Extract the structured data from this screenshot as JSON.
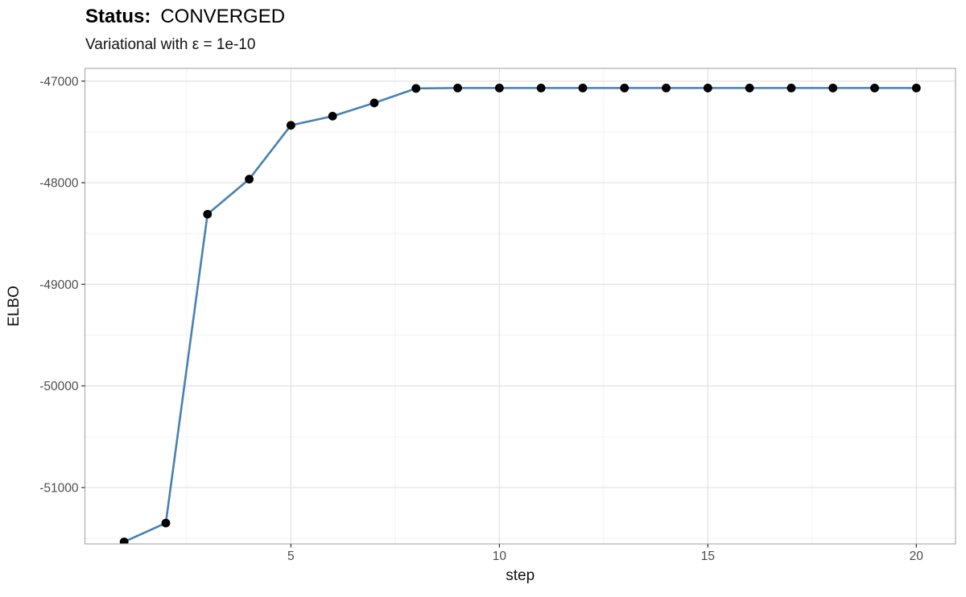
{
  "header": {
    "status_label": "Status:",
    "status_value": "CONVERGED",
    "subtitle": "Variational with ε = 1e-10"
  },
  "chart_data": {
    "type": "line",
    "title": "Status: CONVERGED",
    "subtitle": "Variational with ε = 1e-10",
    "xlabel": "step",
    "ylabel": "ELBO",
    "x": [
      1,
      2,
      3,
      4,
      5,
      6,
      7,
      8,
      9,
      10,
      11,
      12,
      13,
      14,
      15,
      16,
      17,
      18,
      19,
      20
    ],
    "y": [
      -51535,
      -51350,
      -48310,
      -47965,
      -47435,
      -47345,
      -47215,
      -47072,
      -47068,
      -47068,
      -47068,
      -47068,
      -47068,
      -47068,
      -47068,
      -47068,
      -47068,
      -47068,
      -47068,
      -47068
    ],
    "x_ticks": [
      5,
      10,
      15,
      20
    ],
    "x_minor_ticks": [
      2.5,
      7.5,
      12.5,
      17.5
    ],
    "y_ticks": [
      -47000,
      -48000,
      -49000,
      -50000,
      -51000
    ],
    "y_minor_ticks": [
      -47500,
      -48500,
      -49500,
      -50500,
      -51500
    ],
    "xlim": [
      0.06,
      20.94
    ],
    "ylim": [
      -51555,
      -46875
    ],
    "grid": "major and minor, light gray on white panel with gray border",
    "legend": "none",
    "line_color": "#4682B4",
    "point_color": "#000000",
    "major_grid_color": "#e2e2e2",
    "minor_grid_color": "#efefef",
    "panel_border_color": "#adadad",
    "tick_color": "#333333",
    "tick_label_color": "#4d4d4d"
  }
}
